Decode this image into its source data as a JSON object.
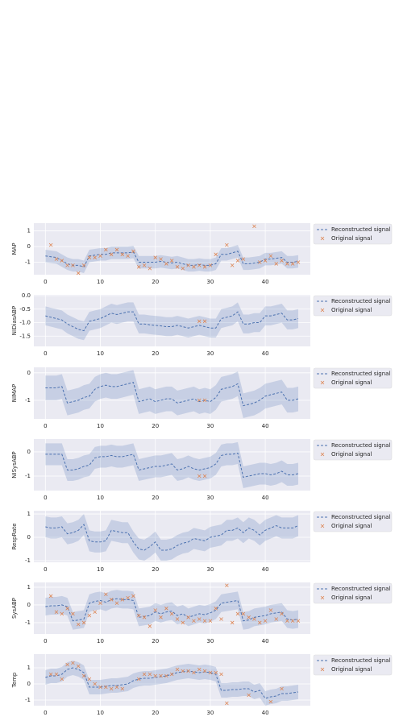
{
  "chart_data": [
    {
      "type": "line",
      "ylabel": "MAP",
      "x": [
        0,
        1,
        2,
        3,
        4,
        5,
        6,
        7,
        8,
        9,
        10,
        11,
        12,
        13,
        14,
        15,
        16,
        17,
        18,
        19,
        20,
        21,
        22,
        23,
        24,
        25,
        26,
        27,
        28,
        29,
        30,
        31,
        32,
        33,
        34,
        35,
        36,
        37,
        38,
        39,
        40,
        41,
        42,
        43,
        44,
        45,
        46
      ],
      "series": [
        {
          "name": "Reconstructed signal",
          "color": "#4c72b0",
          "uncertainty": 0.4,
          "values": [
            -0.6,
            -0.65,
            -0.7,
            -0.9,
            -1.1,
            -1.2,
            -1.2,
            -1.3,
            -0.6,
            -0.55,
            -0.5,
            -0.5,
            -0.4,
            -0.4,
            -0.4,
            -0.4,
            -0.35,
            -1.0,
            -1.0,
            -1.0,
            -1.0,
            -0.95,
            -1.0,
            -1.05,
            -1.0,
            -1.1,
            -1.2,
            -1.2,
            -1.15,
            -1.2,
            -1.2,
            -1.1,
            -0.5,
            -0.5,
            -0.4,
            -0.3,
            -1.1,
            -1.1,
            -1.05,
            -1.0,
            -0.8,
            -0.8,
            -0.75,
            -0.7,
            -1.0,
            -1.0,
            -0.95
          ]
        },
        {
          "name": "Original signal",
          "color": "#dd8452",
          "x": [
            1,
            2,
            3,
            4,
            5,
            6,
            7,
            8,
            9,
            10,
            11,
            12,
            13,
            14,
            15,
            16,
            17,
            18,
            19,
            20,
            21,
            22,
            23,
            24,
            25,
            26,
            27,
            28,
            29,
            30,
            31,
            33,
            34,
            35,
            36,
            38,
            39,
            40,
            41,
            42,
            43,
            44,
            45,
            46
          ],
          "values": [
            0.1,
            -0.8,
            -0.9,
            -1.2,
            -1.2,
            -1.7,
            -1.2,
            -0.7,
            -0.7,
            -0.6,
            -0.2,
            -0.5,
            -0.2,
            -0.5,
            -0.6,
            -0.3,
            -1.3,
            -1.2,
            -1.4,
            -0.7,
            -0.8,
            -1.1,
            -0.9,
            -1.3,
            -1.4,
            -1.2,
            -1.3,
            -1.2,
            -1.3,
            -1.2,
            -0.5,
            0.1,
            -1.2,
            -0.9,
            -0.8,
            1.3,
            -1.0,
            -0.9,
            -0.6,
            -1.1,
            -0.9,
            -1.1,
            -1.1,
            -1.0
          ]
        }
      ],
      "xlim": [
        -2.1,
        48.2
      ],
      "xticks": [
        0,
        10,
        20,
        30,
        40
      ],
      "ylim": [
        -1.8,
        1.5
      ],
      "yticks": [
        -1,
        0,
        1
      ],
      "grid": true,
      "legend": "outside-right"
    },
    {
      "type": "line",
      "ylabel": "NIDiasABP",
      "x": [
        0,
        1,
        2,
        3,
        4,
        5,
        6,
        7,
        8,
        9,
        10,
        11,
        12,
        13,
        14,
        15,
        16,
        17,
        18,
        19,
        20,
        21,
        22,
        23,
        24,
        25,
        26,
        27,
        28,
        29,
        30,
        31,
        32,
        33,
        34,
        35,
        36,
        37,
        38,
        39,
        40,
        41,
        42,
        43,
        44,
        45,
        46
      ],
      "series": [
        {
          "name": "Reconstructed signal",
          "color": "#4c72b0",
          "uncertainty": 0.35,
          "values": [
            -0.75,
            -0.8,
            -0.85,
            -0.9,
            -1.05,
            -1.15,
            -1.25,
            -1.3,
            -0.95,
            -0.9,
            -0.85,
            -0.75,
            -0.65,
            -0.7,
            -0.65,
            -0.6,
            -0.6,
            -1.05,
            -1.05,
            -1.08,
            -1.1,
            -1.12,
            -1.15,
            -1.15,
            -1.1,
            -1.15,
            -1.2,
            -1.15,
            -1.1,
            -1.15,
            -1.2,
            -1.2,
            -0.85,
            -0.8,
            -0.75,
            -0.6,
            -1.05,
            -1.05,
            -1.0,
            -1.0,
            -0.75,
            -0.75,
            -0.7,
            -0.65,
            -0.9,
            -0.9,
            -0.85
          ]
        },
        {
          "name": "Original signal",
          "color": "#dd8452",
          "x": [
            28,
            29
          ],
          "values": [
            -0.95,
            -0.95
          ]
        }
      ],
      "xlim": [
        -2.1,
        48.2
      ],
      "xticks": [
        0,
        10,
        20,
        30,
        40
      ],
      "ylim": [
        -1.88,
        0.03
      ],
      "yticks": [
        {
          "value": 0,
          "label": "0.0"
        },
        -0.5,
        {
          "value": -1,
          "label": "-1.0"
        },
        -1.5
      ],
      "grid": true,
      "legend": "outside-right"
    },
    {
      "type": "line",
      "ylabel": "NIMAP",
      "x": [
        0,
        1,
        2,
        3,
        4,
        5,
        6,
        7,
        8,
        9,
        10,
        11,
        12,
        13,
        14,
        15,
        16,
        17,
        18,
        19,
        20,
        21,
        22,
        23,
        24,
        25,
        26,
        27,
        28,
        29,
        30,
        31,
        32,
        33,
        34,
        35,
        36,
        37,
        38,
        39,
        40,
        41,
        42,
        43,
        44,
        45,
        46
      ],
      "series": [
        {
          "name": "Reconstructed signal",
          "color": "#4c72b0",
          "uncertainty": 0.45,
          "values": [
            -0.55,
            -0.55,
            -0.55,
            -0.5,
            -1.1,
            -1.05,
            -1.0,
            -0.9,
            -0.85,
            -0.6,
            -0.5,
            -0.45,
            -0.5,
            -0.5,
            -0.45,
            -0.4,
            -0.35,
            -1.05,
            -1.0,
            -0.95,
            -1.05,
            -1.0,
            -0.95,
            -0.95,
            -1.1,
            -1.05,
            -1.0,
            -0.95,
            -1.05,
            -1.0,
            -1.05,
            -0.9,
            -0.6,
            -0.55,
            -0.5,
            -0.4,
            -1.2,
            -1.15,
            -1.1,
            -1.0,
            -0.85,
            -0.8,
            -0.75,
            -0.7,
            -1.0,
            -1.0,
            -0.95
          ]
        },
        {
          "name": "Original signal",
          "color": "#dd8452",
          "x": [
            28,
            29
          ],
          "values": [
            -1.0,
            -1.0
          ]
        }
      ],
      "xlim": [
        -2.1,
        48.2
      ],
      "xticks": [
        0,
        10,
        20,
        30,
        40
      ],
      "ylim": [
        -1.68,
        0.2
      ],
      "yticks": [
        -1,
        0
      ],
      "grid": true,
      "legend": "outside-right"
    },
    {
      "type": "line",
      "ylabel": "NISysABP",
      "x": [
        0,
        1,
        2,
        3,
        4,
        5,
        6,
        7,
        8,
        9,
        10,
        11,
        12,
        13,
        14,
        15,
        16,
        17,
        18,
        19,
        20,
        21,
        22,
        23,
        24,
        25,
        26,
        27,
        28,
        29,
        30,
        31,
        32,
        33,
        34,
        35,
        36,
        37,
        38,
        39,
        40,
        41,
        42,
        43,
        44,
        45,
        46
      ],
      "series": [
        {
          "name": "Reconstructed signal",
          "color": "#4c72b0",
          "uncertainty": 0.45,
          "values": [
            -0.1,
            -0.1,
            -0.1,
            -0.1,
            -0.75,
            -0.75,
            -0.7,
            -0.6,
            -0.55,
            -0.25,
            -0.2,
            -0.2,
            -0.15,
            -0.2,
            -0.2,
            -0.15,
            -0.1,
            -0.75,
            -0.7,
            -0.65,
            -0.6,
            -0.6,
            -0.55,
            -0.5,
            -0.75,
            -0.7,
            -0.6,
            -0.7,
            -0.75,
            -0.7,
            -0.65,
            -0.5,
            -0.15,
            -0.1,
            -0.1,
            -0.05,
            -1.05,
            -1.0,
            -0.95,
            -0.9,
            -0.9,
            -0.95,
            -0.9,
            -0.8,
            -0.95,
            -0.95,
            -0.9
          ]
        },
        {
          "name": "Original signal",
          "color": "#dd8452",
          "x": [
            28,
            29
          ],
          "values": [
            -1.0,
            -1.0
          ]
        }
      ],
      "xlim": [
        -2.1,
        48.2
      ],
      "xticks": [
        0,
        10,
        20,
        30,
        40
      ],
      "ylim": [
        -1.6,
        0.53
      ],
      "yticks": [
        -1,
        0
      ],
      "grid": true,
      "legend": "outside-right"
    },
    {
      "type": "line",
      "ylabel": "RespRate",
      "x": [
        0,
        1,
        2,
        3,
        4,
        5,
        6,
        7,
        8,
        9,
        10,
        11,
        12,
        13,
        14,
        15,
        16,
        17,
        18,
        19,
        20,
        21,
        22,
        23,
        24,
        25,
        26,
        27,
        28,
        29,
        30,
        31,
        32,
        33,
        34,
        35,
        36,
        37,
        38,
        39,
        40,
        41,
        42,
        43,
        44,
        45,
        46
      ],
      "series": [
        {
          "name": "Reconstructed signal",
          "color": "#4c72b0",
          "uncertainty": 0.45,
          "values": [
            0.45,
            0.4,
            0.4,
            0.45,
            0.15,
            0.2,
            0.3,
            0.55,
            -0.15,
            -0.2,
            -0.2,
            -0.15,
            0.3,
            0.25,
            0.2,
            0.2,
            -0.2,
            -0.5,
            -0.55,
            -0.4,
            -0.2,
            -0.55,
            -0.55,
            -0.5,
            -0.35,
            -0.25,
            -0.2,
            -0.05,
            -0.1,
            -0.15,
            0,
            0.05,
            0.1,
            0.3,
            0.3,
            0.4,
            0.2,
            0.4,
            0.3,
            0.1,
            0.3,
            0.4,
            0.5,
            0.4,
            0.4,
            0.4,
            0.5
          ]
        },
        {
          "name": "Original signal",
          "color": "#dd8452",
          "x": [],
          "values": []
        }
      ],
      "xlim": [
        -2.1,
        48.2
      ],
      "xticks": [
        0,
        10,
        20,
        30,
        40
      ],
      "ylim": [
        -1.07,
        1.14
      ],
      "yticks": [
        -1,
        0,
        1
      ],
      "grid": true,
      "legend": "outside-right"
    },
    {
      "type": "line",
      "ylabel": "SysABP",
      "x": [
        0,
        1,
        2,
        3,
        4,
        5,
        6,
        7,
        8,
        9,
        10,
        11,
        12,
        13,
        14,
        15,
        16,
        17,
        18,
        19,
        20,
        21,
        22,
        23,
        24,
        25,
        26,
        27,
        28,
        29,
        30,
        31,
        32,
        33,
        34,
        35,
        36,
        37,
        38,
        39,
        40,
        41,
        42,
        43,
        44,
        45,
        46
      ],
      "series": [
        {
          "name": "Reconstructed signal",
          "color": "#4c72b0",
          "uncertainty": 0.5,
          "values": [
            -0.1,
            -0.05,
            -0.05,
            0,
            -0.1,
            -0.9,
            -0.85,
            -0.8,
            0.1,
            0.2,
            0.25,
            0.15,
            0.3,
            0.35,
            0.3,
            0.3,
            0.25,
            -0.7,
            -0.65,
            -0.6,
            -0.4,
            -0.5,
            -0.4,
            -0.35,
            -0.6,
            -0.5,
            -0.7,
            -0.6,
            -0.5,
            -0.55,
            -0.45,
            -0.3,
            0.1,
            0.15,
            0.2,
            0.25,
            -0.9,
            -0.85,
            -0.7,
            -0.65,
            -0.6,
            -0.5,
            -0.45,
            -0.4,
            -0.8,
            -0.85,
            -0.8
          ]
        },
        {
          "name": "Original signal",
          "color": "#dd8452",
          "x": [
            1,
            2,
            3,
            4,
            5,
            6,
            7,
            8,
            9,
            10,
            11,
            12,
            13,
            14,
            15,
            16,
            17,
            18,
            19,
            20,
            21,
            22,
            23,
            24,
            25,
            26,
            27,
            28,
            29,
            30,
            31,
            32,
            33,
            34,
            35,
            36,
            37,
            38,
            39,
            40,
            41,
            42,
            43,
            44,
            45,
            46
          ],
          "values": [
            0.5,
            -0.4,
            -0.5,
            -0.2,
            -0.5,
            -1.1,
            -1.0,
            -0.6,
            -0.4,
            0.1,
            0.6,
            0.3,
            0.1,
            0.3,
            0.4,
            0.5,
            -0.6,
            -0.7,
            -1.2,
            -0.3,
            -0.7,
            -0.2,
            -0.5,
            -0.8,
            -1.0,
            -0.7,
            -0.9,
            -0.8,
            -0.9,
            -0.9,
            -0.2,
            -0.8,
            1.1,
            -1.0,
            -0.5,
            -0.5,
            -0.7,
            -0.8,
            -1.0,
            -0.9,
            -0.3,
            -0.8,
            -0.5,
            -0.9,
            -0.9,
            -0.9
          ]
        }
      ],
      "xlim": [
        -2.1,
        48.2
      ],
      "xticks": [
        0,
        10,
        20,
        30,
        40
      ],
      "ylim": [
        -1.64,
        1.27
      ],
      "yticks": [
        -1,
        0,
        1
      ],
      "grid": true,
      "legend": "outside-right"
    },
    {
      "type": "line",
      "ylabel": "Temp",
      "x": [
        0,
        1,
        2,
        3,
        4,
        5,
        6,
        7,
        8,
        9,
        10,
        11,
        12,
        13,
        14,
        15,
        16,
        17,
        18,
        19,
        20,
        21,
        22,
        23,
        24,
        25,
        26,
        27,
        28,
        29,
        30,
        31,
        32,
        33,
        34,
        35,
        36,
        37,
        38,
        39,
        40,
        41,
        42,
        43,
        44,
        45,
        46
      ],
      "series": [
        {
          "name": "Reconstructed signal",
          "color": "#4c72b0",
          "uncertainty": 0.45,
          "values": [
            0.4,
            0.5,
            0.5,
            0.6,
            0.9,
            1.0,
            0.9,
            0.7,
            -0.2,
            -0.2,
            -0.2,
            -0.15,
            -0.1,
            -0.1,
            -0.05,
            0,
            0.2,
            0.3,
            0.35,
            0.35,
            0.4,
            0.45,
            0.5,
            0.6,
            0.7,
            0.75,
            0.8,
            0.75,
            0.7,
            0.75,
            0.7,
            0.6,
            -0.4,
            -0.4,
            -0.35,
            -0.35,
            -0.3,
            -0.3,
            -0.5,
            -0.4,
            -0.9,
            -0.8,
            -0.75,
            -0.6,
            -0.6,
            -0.55,
            -0.5
          ]
        },
        {
          "name": "Original signal",
          "color": "#dd8452",
          "x": [
            1,
            2,
            3,
            4,
            5,
            6,
            7,
            8,
            9,
            10,
            11,
            12,
            13,
            14,
            17,
            18,
            19,
            20,
            21,
            22,
            23,
            24,
            25,
            26,
            27,
            28,
            29,
            30,
            31,
            32,
            33,
            37,
            41,
            43
          ],
          "values": [
            0.6,
            0.6,
            0.3,
            1.2,
            1.3,
            1.1,
            0.5,
            0.3,
            0.0,
            -0.2,
            -0.2,
            -0.3,
            -0.2,
            -0.3,
            0.3,
            0.6,
            0.6,
            0.5,
            0.5,
            0.5,
            0.6,
            0.9,
            0.8,
            0.8,
            0.7,
            0.9,
            0.8,
            0.7,
            0.7,
            0.6,
            -1.2,
            -0.7,
            -1.1,
            -0.3
          ]
        }
      ],
      "xlim": [
        -2.1,
        48.2
      ],
      "xticks": [
        0,
        10,
        20,
        30,
        40
      ],
      "ylim": [
        -1.35,
        1.85
      ],
      "yticks": [
        -1,
        0,
        1
      ],
      "grid": true,
      "legend": "outside-right"
    }
  ]
}
